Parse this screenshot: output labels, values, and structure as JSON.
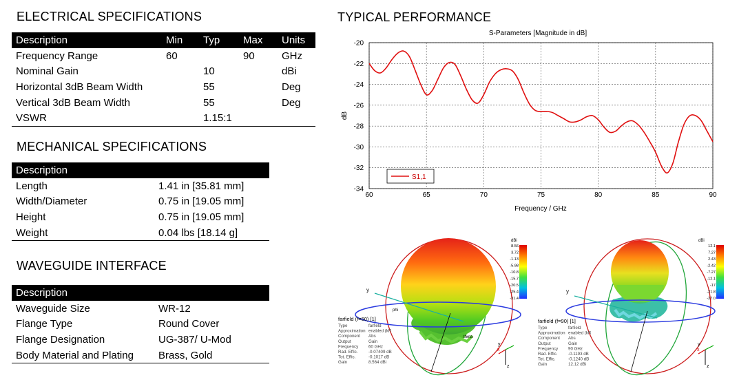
{
  "electrical": {
    "title": "ELECTRICAL SPECIFICATIONS",
    "headers": [
      "Description",
      "Min",
      "Typ",
      "Max",
      "Units"
    ],
    "rows": [
      [
        "Frequency Range",
        "60",
        "",
        "90",
        "GHz"
      ],
      [
        "Nominal Gain",
        "",
        "10",
        "",
        "dBi"
      ],
      [
        "Horizontal 3dB Beam Width",
        "",
        "55",
        "",
        "Deg"
      ],
      [
        "Vertical 3dB Beam Width",
        "",
        "55",
        "",
        "Deg"
      ],
      [
        "VSWR",
        "",
        "1.15:1",
        "",
        ""
      ]
    ]
  },
  "mechanical": {
    "title": "MECHANICAL SPECIFICATIONS",
    "header": "Description",
    "rows": [
      [
        "Length",
        "1.41 in [35.81 mm]"
      ],
      [
        "Width/Diameter",
        "0.75 in [19.05 mm]"
      ],
      [
        "Height",
        "0.75 in [19.05 mm]"
      ],
      [
        "Weight",
        "0.04 lbs [18.14 g]"
      ]
    ]
  },
  "waveguide": {
    "title": "WAVEGUIDE INTERFACE",
    "header": "Description",
    "rows": [
      [
        "Waveguide Size",
        "WR-12"
      ],
      [
        "Flange Type",
        "Round Cover"
      ],
      [
        "Flange Designation",
        "UG-387/ U-Mod"
      ],
      [
        "Body Material and Plating",
        "Brass, Gold"
      ]
    ]
  },
  "performance": {
    "title": "TYPICAL PERFORMANCE"
  },
  "chart_data": {
    "type": "line",
    "title": "S-Parameters [Magnitude in dB]",
    "xlabel": "Frequency / GHz",
    "ylabel": "dB",
    "xlim": [
      60,
      90
    ],
    "ylim": [
      -34,
      -20
    ],
    "xticks": [
      60,
      65,
      70,
      75,
      80,
      85,
      90
    ],
    "yticks": [
      -20,
      -22,
      -24,
      -26,
      -28,
      -30,
      -32,
      -34
    ],
    "grid": true,
    "legend_position": "bottom-left",
    "series": [
      {
        "name": "S1,1",
        "color": "#e01010",
        "x": [
          60,
          60.5,
          61,
          61.5,
          62,
          62.5,
          63,
          63.5,
          64,
          64.5,
          65,
          65.5,
          66,
          66.5,
          67,
          67.5,
          68,
          68.5,
          69,
          69.5,
          70,
          70.5,
          71,
          71.5,
          72,
          72.5,
          73,
          73.5,
          74,
          74.5,
          75,
          75.5,
          76,
          76.5,
          77,
          77.5,
          78,
          78.5,
          79,
          79.5,
          80,
          80.5,
          81,
          81.5,
          82,
          82.5,
          83,
          83.5,
          84,
          84.5,
          85,
          85.5,
          86,
          86.5,
          87,
          87.5,
          88,
          88.5,
          89,
          89.5,
          90
        ],
        "y": [
          -22.0,
          -22.7,
          -22.9,
          -22.4,
          -21.6,
          -21.0,
          -20.8,
          -21.3,
          -22.6,
          -24.0,
          -25.0,
          -24.6,
          -23.5,
          -22.4,
          -21.9,
          -22.1,
          -23.2,
          -24.5,
          -25.5,
          -25.8,
          -25.0,
          -23.8,
          -23.0,
          -22.6,
          -22.5,
          -22.7,
          -23.5,
          -24.8,
          -25.9,
          -26.5,
          -26.6,
          -26.6,
          -26.7,
          -27.0,
          -27.3,
          -27.6,
          -27.6,
          -27.4,
          -27.1,
          -27.0,
          -27.4,
          -28.1,
          -28.6,
          -28.5,
          -28.0,
          -27.6,
          -27.5,
          -27.9,
          -28.6,
          -29.5,
          -30.5,
          -31.8,
          -32.5,
          -31.6,
          -29.5,
          -27.8,
          -27.0,
          -27.0,
          -27.5,
          -28.5,
          -29.5
        ]
      }
    ]
  },
  "farfield1": {
    "label": "farfield (f=60) [1]",
    "rows": [
      [
        "Type",
        "farfield"
      ],
      [
        "Approximation",
        "enabled (kR"
      ],
      [
        "Component",
        "Abs"
      ],
      [
        "Output",
        "Gain"
      ],
      [
        "Frequency",
        "60 GHz"
      ],
      [
        "Rad. Effic.",
        "-0.07409 dB"
      ],
      [
        "Tot. Effic.",
        "-0.1017 dB"
      ],
      [
        "Gain",
        "8.564 dBi"
      ]
    ],
    "unit": "dBi",
    "scale": [
      "8.56",
      "3.72",
      "-1.13",
      "-5.98",
      "-10.8",
      "-15.7",
      "-20.5",
      "-25.4",
      "-31.4"
    ]
  },
  "farfield2": {
    "label": "farfield (f=90) [1]",
    "rows": [
      [
        "Type",
        "farfield"
      ],
      [
        "Approximation",
        "enabled (kR"
      ],
      [
        "Component",
        "Abs"
      ],
      [
        "Output",
        "Gain"
      ],
      [
        "Frequency",
        "90 GHz"
      ],
      [
        "Rad. Effic.",
        "-0.1193 dB"
      ],
      [
        "Tot. Effic.",
        "-0.1240 dB"
      ],
      [
        "Gain",
        "12.12 dBi"
      ]
    ],
    "unit": "dBi",
    "scale": [
      "12.1",
      "7.27",
      "2.43",
      "-2.42",
      "-7.27",
      "-12.1",
      "-17",
      "-21.8",
      "-27.0"
    ]
  },
  "axes": {
    "x": "x",
    "y": "y",
    "z": "z",
    "phi": "phi",
    "theta": "theta"
  }
}
